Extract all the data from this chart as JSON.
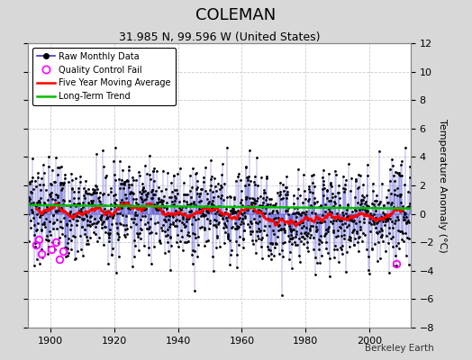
{
  "title": "COLEMAN",
  "subtitle": "31.985 N, 99.596 W (United States)",
  "ylabel": "Temperature Anomaly (°C)",
  "credit": "Berkeley Earth",
  "ylim": [
    -8,
    12
  ],
  "yticks": [
    -8,
    -6,
    -4,
    -2,
    0,
    2,
    4,
    6,
    8,
    10,
    12
  ],
  "xlim": [
    1893,
    2013
  ],
  "xticks": [
    1900,
    1920,
    1940,
    1960,
    1980,
    2000
  ],
  "seed": 37,
  "start_year": 1893,
  "end_year": 2012,
  "raw_color": "#3333CC",
  "dot_color": "#000000",
  "qc_color": "#FF00FF",
  "moving_avg_color": "#FF0000",
  "trend_color": "#00BB00",
  "plot_bg_color": "#FFFFFF",
  "fig_bg_color": "#D8D8D8",
  "grid_color": "#C0C0C0",
  "title_fontsize": 13,
  "subtitle_fontsize": 9,
  "ylabel_fontsize": 8,
  "tick_fontsize": 8,
  "trend_intercept": 0.5,
  "trend_slope": -0.002
}
